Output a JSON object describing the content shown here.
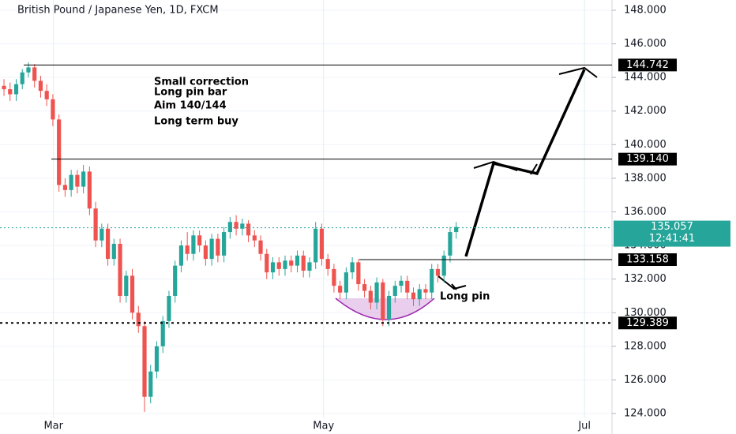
{
  "chart_data": {
    "type": "candlestick",
    "title": "British Pound / Japanese Yen, 1D, FXCM",
    "ylim": [
      122.78,
      148.61
    ],
    "xlim": [
      -0.65,
      99.5
    ],
    "yticks": [
      {
        "value": 124,
        "label": "124.000"
      },
      {
        "value": 126,
        "label": "126.000"
      },
      {
        "value": 128,
        "label": "128.000"
      },
      {
        "value": 130,
        "label": "130.000"
      },
      {
        "value": 132,
        "label": "132.000"
      },
      {
        "value": 134,
        "label": "134.000"
      },
      {
        "value": 136,
        "label": "136.000"
      },
      {
        "value": 138,
        "label": "138.000"
      },
      {
        "value": 140,
        "label": "140.000"
      },
      {
        "value": 142,
        "label": "142.000"
      },
      {
        "value": 144,
        "label": "144.000"
      },
      {
        "value": 146,
        "label": "146.000"
      },
      {
        "value": 148,
        "label": "148.000"
      }
    ],
    "xticks": [
      {
        "value": 8.1,
        "label": "Mar"
      },
      {
        "value": 52.3,
        "label": "May"
      },
      {
        "value": 95,
        "label": "Jul"
      }
    ],
    "grid": true,
    "up_color": "#26a69a",
    "down_color": "#ef5350",
    "open": [
      143.5,
      143.3,
      143.0,
      143.6,
      144.3,
      144.6,
      143.8,
      143.2,
      142.7,
      141.5,
      137.6,
      137.3,
      138.2,
      137.5,
      138.4,
      136.2,
      134.3,
      135.0,
      133.2,
      134.1,
      131.0,
      132.2,
      130.0,
      129.2,
      125.0,
      126.5,
      128.0,
      129.5,
      131.0,
      132.8,
      134.0,
      133.5,
      134.6,
      134.0,
      133.2,
      134.4,
      133.4,
      134.8,
      135.4,
      135.0,
      135.3,
      134.6,
      134.3,
      133.5,
      132.4,
      133.0,
      132.6,
      133.1,
      132.8,
      133.4,
      132.5,
      133.0,
      135.0,
      133.2,
      132.6,
      131.6,
      131.2,
      132.4,
      133.0,
      131.7,
      131.3,
      130.6,
      131.8,
      129.6,
      131.0,
      131.6,
      131.9,
      131.2,
      130.8,
      131.4,
      131.2,
      132.6,
      132.2,
      133.4,
      134.8
    ],
    "high": [
      143.9,
      143.7,
      143.9,
      144.5,
      144.9,
      144.8,
      144.1,
      143.6,
      143.0,
      141.8,
      138.0,
      138.5,
      138.5,
      138.8,
      138.7,
      136.6,
      135.3,
      135.3,
      134.4,
      134.4,
      132.5,
      132.6,
      130.4,
      129.5,
      126.9,
      128.3,
      129.8,
      131.3,
      133.1,
      134.3,
      134.8,
      134.9,
      134.9,
      134.3,
      134.7,
      134.7,
      135.1,
      135.7,
      135.8,
      135.6,
      135.5,
      134.9,
      134.6,
      133.8,
      133.3,
      133.3,
      133.4,
      133.4,
      133.7,
      133.7,
      133.3,
      135.4,
      135.3,
      133.5,
      132.9,
      131.9,
      132.7,
      133.3,
      133.2,
      132.0,
      131.6,
      132.1,
      132.0,
      131.3,
      131.9,
      132.2,
      132.2,
      131.5,
      131.7,
      131.7,
      132.9,
      132.9,
      133.7,
      135.1,
      135.4
    ],
    "low": [
      142.9,
      142.6,
      142.6,
      143.3,
      144.0,
      143.4,
      142.8,
      142.3,
      141.1,
      137.2,
      136.9,
      136.9,
      137.1,
      137.1,
      135.8,
      133.9,
      133.9,
      132.8,
      132.8,
      130.6,
      130.6,
      129.6,
      128.8,
      124.1,
      124.6,
      126.1,
      127.6,
      129.1,
      130.6,
      132.4,
      133.1,
      133.1,
      133.6,
      132.8,
      132.8,
      133.0,
      133.0,
      134.4,
      134.6,
      134.6,
      134.2,
      133.9,
      133.1,
      132.0,
      132.0,
      132.2,
      132.2,
      132.4,
      132.4,
      132.1,
      132.1,
      132.6,
      132.8,
      132.2,
      131.2,
      130.8,
      130.8,
      132.0,
      131.3,
      130.9,
      130.2,
      130.2,
      129.2,
      129.2,
      130.6,
      131.2,
      130.8,
      130.4,
      130.4,
      130.8,
      130.8,
      131.8,
      131.8,
      133.0,
      134.4
    ],
    "close": [
      143.3,
      143.0,
      143.6,
      144.3,
      144.6,
      143.8,
      143.2,
      142.7,
      141.5,
      137.6,
      137.3,
      138.2,
      137.5,
      138.4,
      136.2,
      134.3,
      135.0,
      133.2,
      134.1,
      131.0,
      132.2,
      130.0,
      129.2,
      125.0,
      126.5,
      128.0,
      129.5,
      131.0,
      132.8,
      134.0,
      133.5,
      134.6,
      134.0,
      133.2,
      134.4,
      133.4,
      134.8,
      135.4,
      135.0,
      135.3,
      134.6,
      134.3,
      133.5,
      132.4,
      133.0,
      132.6,
      133.1,
      132.8,
      133.4,
      132.5,
      133.0,
      135.0,
      133.2,
      132.6,
      131.6,
      131.2,
      132.4,
      133.0,
      131.7,
      131.3,
      130.6,
      131.8,
      129.6,
      131.0,
      131.6,
      131.9,
      131.2,
      130.8,
      131.4,
      131.2,
      132.6,
      132.2,
      133.4,
      134.8,
      135.1
    ],
    "levels": [
      {
        "value": 144.742,
        "label": "144.742"
      },
      {
        "value": 139.14,
        "label": "139.140"
      },
      {
        "value": 133.158,
        "label": "133.158"
      },
      {
        "value": 129.389,
        "label": "129.389"
      }
    ],
    "last_price": {
      "value": 135.057,
      "label": "135.057"
    },
    "countdown": "12:41:41",
    "annotations": [
      "Small correction",
      "Long pin bar",
      "Aim 140/144",
      "Long term buy",
      "Long pin"
    ]
  }
}
